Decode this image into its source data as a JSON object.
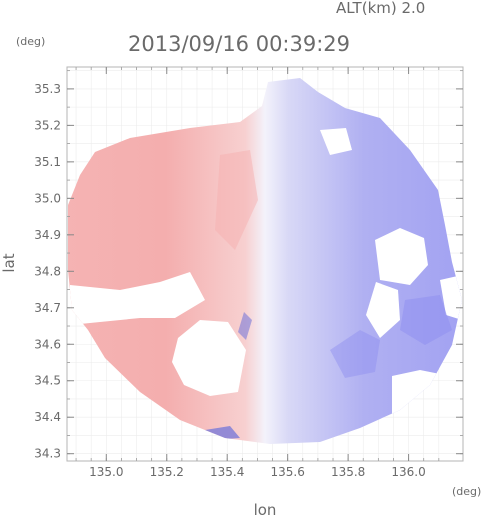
{
  "chart_data": {
    "type": "heatmap",
    "title": "2013/09/16 00:39:29",
    "altitude_label": "ALT(km) 2.0",
    "xlabel": "lon",
    "ylabel": "lat",
    "xunit": "(deg)",
    "yunit": "(deg)",
    "xlim": [
      134.87,
      136.18
    ],
    "ylim": [
      34.28,
      35.36
    ],
    "x_ticks": [
      135.0,
      135.2,
      135.4,
      135.6,
      135.8,
      136.0
    ],
    "x_tick_labels": [
      "135.0",
      "135.2",
      "135.4",
      "135.6",
      "135.8",
      "136.0"
    ],
    "y_ticks": [
      34.3,
      34.4,
      34.5,
      34.6,
      34.7,
      34.8,
      34.9,
      35.0,
      35.1,
      35.2,
      35.3
    ],
    "y_tick_labels": [
      "34.3",
      "34.4",
      "34.5",
      "34.6",
      "34.7",
      "34.8",
      "34.9",
      "35.0",
      "35.1",
      "35.2",
      "35.3"
    ],
    "grid": true,
    "colors": {
      "positive": "#f4a8a8",
      "negative": "#9f9ff2",
      "neutral": "#f2f2fb"
    }
  }
}
